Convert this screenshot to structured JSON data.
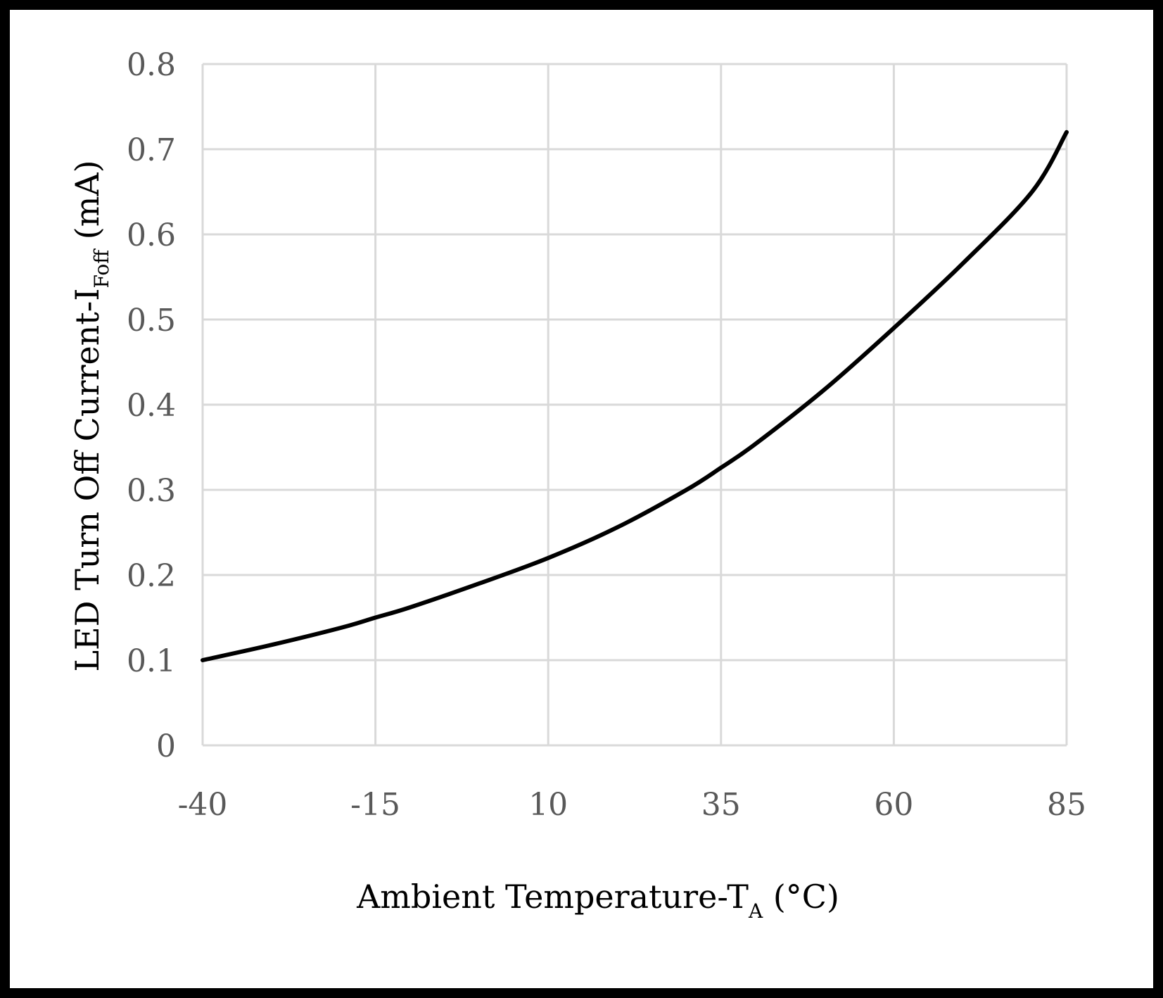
{
  "chart_data": {
    "type": "line",
    "title": "",
    "xlabel": {
      "main": "Ambient Temperature-T",
      "sub": "A",
      "suffix": " (°C)"
    },
    "ylabel": {
      "main": "LED Turn Off Current-I",
      "sub": "Foff",
      "suffix": " (mA)"
    },
    "xlim": [
      -40,
      85
    ],
    "ylim": [
      0,
      0.8
    ],
    "xticks": [
      -40,
      -15,
      10,
      35,
      60,
      85
    ],
    "yticks": [
      0,
      0.1,
      0.2,
      0.3,
      0.4,
      0.5,
      0.6,
      0.7,
      0.8
    ],
    "xtick_labels": [
      "-40",
      "-15",
      "10",
      "35",
      "60",
      "85"
    ],
    "ytick_labels": [
      "0",
      "0.1",
      "0.2",
      "0.3",
      "0.4",
      "0.5",
      "0.6",
      "0.7",
      "0.8"
    ],
    "grid": true,
    "series": [
      {
        "name": "IFoff",
        "color": "#000000",
        "x": [
          -40,
          -30,
          -20,
          -15,
          -10,
          0,
          10,
          20,
          30,
          35,
          40,
          50,
          60,
          70,
          80,
          85
        ],
        "y": [
          0.1,
          0.118,
          0.138,
          0.15,
          0.162,
          0.19,
          0.22,
          0.256,
          0.3,
          0.326,
          0.354,
          0.418,
          0.49,
          0.566,
          0.65,
          0.72
        ]
      }
    ]
  },
  "colors": {
    "grid": "#d9d9d9",
    "tick_text": "#595959",
    "line": "#000000",
    "frame": "#000000"
  }
}
